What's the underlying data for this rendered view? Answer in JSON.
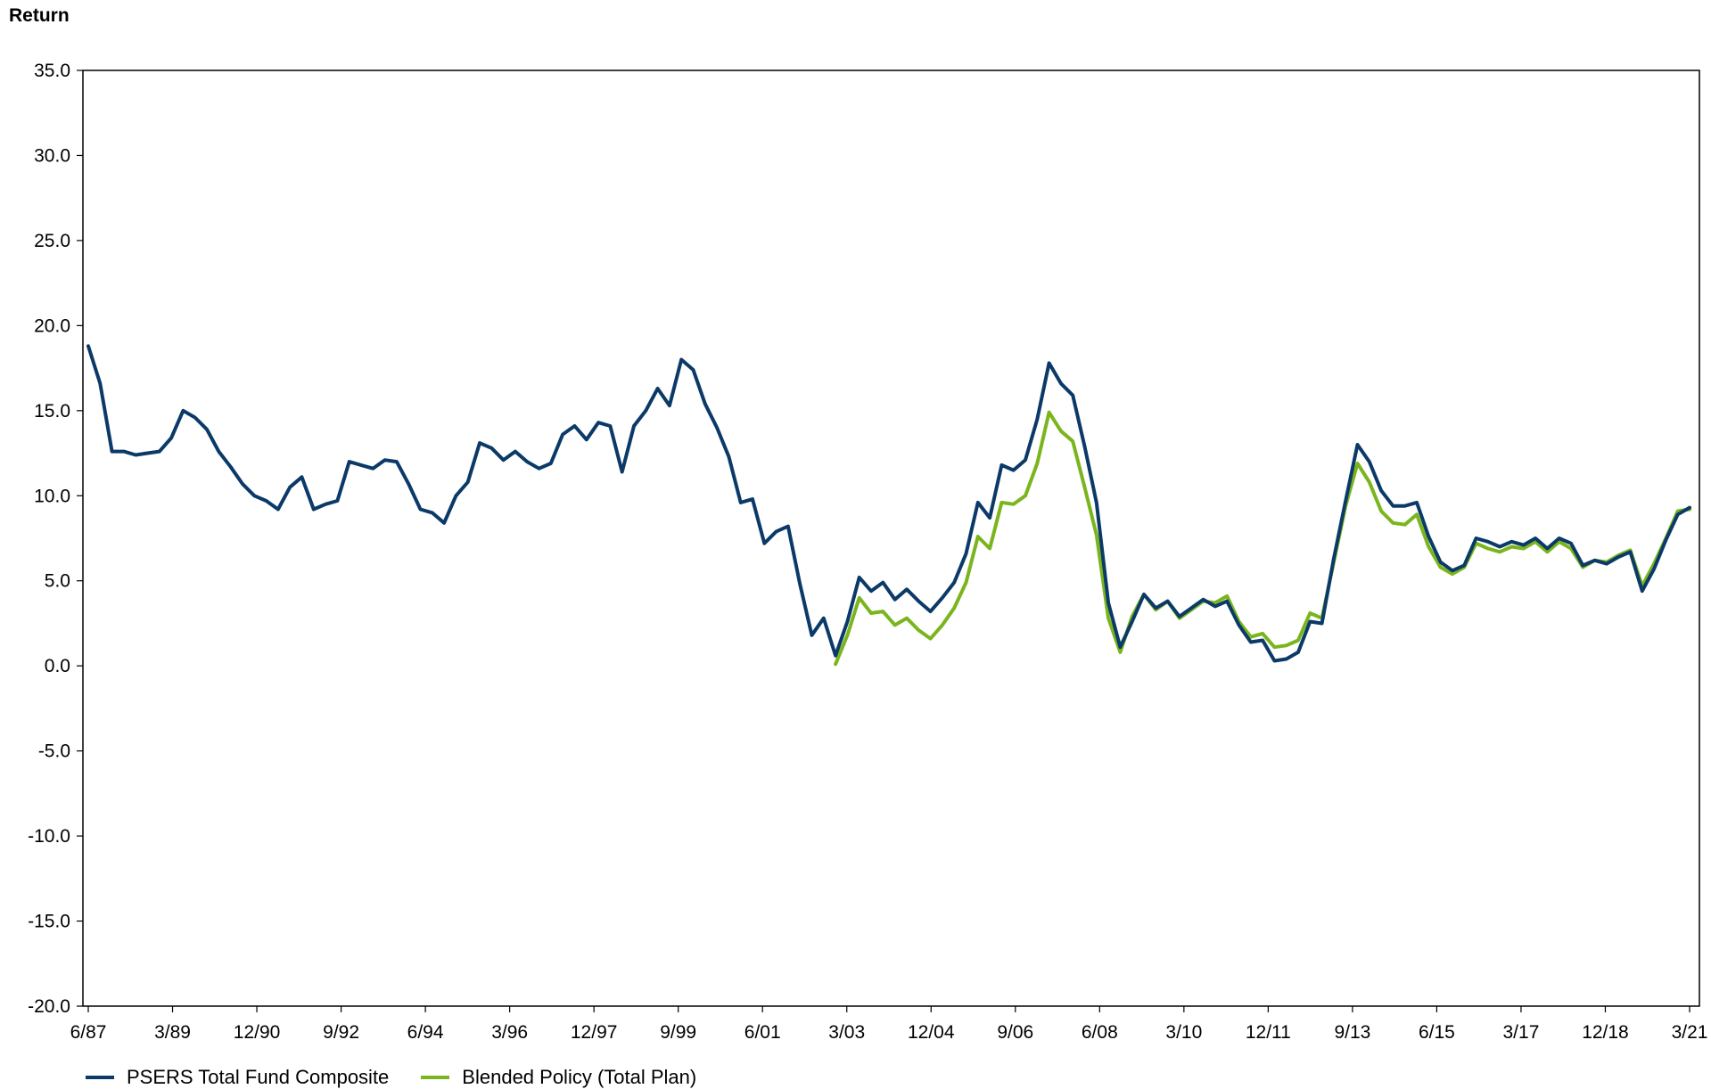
{
  "chart_data": {
    "type": "line",
    "ylabel": "Return",
    "ylim": [
      -20,
      35
    ],
    "yticks": [
      "35.0",
      "30.0",
      "25.0",
      "20.0",
      "15.0",
      "10.0",
      "5.0",
      "0.0",
      "-5.0",
      "-10.0",
      "-15.0",
      "-20.0"
    ],
    "xticks": [
      "6/87",
      "3/89",
      "12/90",
      "9/92",
      "6/94",
      "3/96",
      "12/97",
      "9/99",
      "6/01",
      "3/03",
      "12/04",
      "9/06",
      "6/08",
      "3/10",
      "12/11",
      "9/13",
      "6/15",
      "3/17",
      "12/18",
      "3/21"
    ],
    "x_start": "6/87",
    "x_end": "3/21",
    "grid": false,
    "legend_position": "bottom-left",
    "series": [
      {
        "name": "PSERS Total Fund Composite",
        "color": "#0b3a68",
        "values": [
          18.8,
          16.6,
          12.6,
          12.6,
          12.4,
          12.5,
          12.6,
          13.4,
          15.0,
          14.6,
          13.9,
          12.6,
          11.7,
          10.7,
          10.0,
          9.7,
          9.2,
          10.5,
          11.1,
          9.2,
          9.5,
          9.7,
          12.0,
          11.8,
          11.6,
          12.1,
          12.0,
          10.7,
          9.2,
          9.0,
          8.4,
          10.0,
          10.8,
          13.1,
          12.8,
          12.1,
          12.6,
          12.0,
          11.6,
          11.9,
          13.6,
          14.1,
          13.3,
          14.3,
          14.1,
          11.4,
          14.1,
          15.0,
          16.3,
          15.3,
          18.0,
          17.4,
          15.4,
          14.0,
          12.3,
          9.6,
          9.8,
          7.2,
          7.9,
          8.2,
          4.8,
          1.8,
          2.8,
          0.6,
          2.6,
          5.2,
          4.4,
          4.9,
          3.9,
          4.5,
          3.8,
          3.2,
          4.0,
          4.9,
          6.6,
          9.6,
          8.7,
          11.8,
          11.5,
          12.1,
          14.5,
          17.8,
          16.6,
          15.9,
          12.9,
          9.6,
          3.7,
          1.1,
          2.6,
          4.2,
          3.4,
          3.8,
          2.9,
          3.4,
          3.9,
          3.5,
          3.8,
          2.4,
          1.4,
          1.5,
          0.3,
          0.4,
          0.8,
          2.6,
          2.5,
          6.3,
          9.7,
          13.0,
          12.0,
          10.3,
          9.4,
          9.4,
          9.6,
          7.6,
          6.1,
          5.6,
          5.9,
          7.5,
          7.3,
          7.0,
          7.3,
          7.1,
          7.5,
          6.9,
          7.5,
          7.2,
          5.9,
          6.2,
          6.0,
          6.4,
          6.7,
          4.4,
          5.7,
          7.4,
          8.9,
          9.3
        ]
      },
      {
        "name": "Blended Policy (Total Plan)",
        "color": "#7ab51d",
        "start_index": 63,
        "values": [
          0.1,
          1.8,
          4.0,
          3.1,
          3.2,
          2.4,
          2.8,
          2.1,
          1.6,
          2.4,
          3.4,
          4.9,
          7.6,
          6.9,
          9.6,
          9.5,
          10.0,
          11.9,
          14.9,
          13.8,
          13.2,
          10.5,
          7.7,
          2.8,
          0.8,
          2.9,
          4.2,
          3.3,
          3.8,
          2.8,
          3.3,
          3.8,
          3.7,
          4.1,
          2.6,
          1.7,
          1.9,
          1.1,
          1.2,
          1.5,
          3.1,
          2.8,
          6.1,
          9.4,
          11.9,
          10.8,
          9.1,
          8.4,
          8.3,
          8.9,
          7.0,
          5.8,
          5.4,
          5.8,
          7.2,
          6.9,
          6.7,
          7.0,
          6.9,
          7.3,
          6.7,
          7.3,
          6.9,
          5.8,
          6.2,
          6.1,
          6.5,
          6.8,
          4.7,
          6.0,
          7.5,
          9.1,
          9.2
        ]
      }
    ]
  }
}
